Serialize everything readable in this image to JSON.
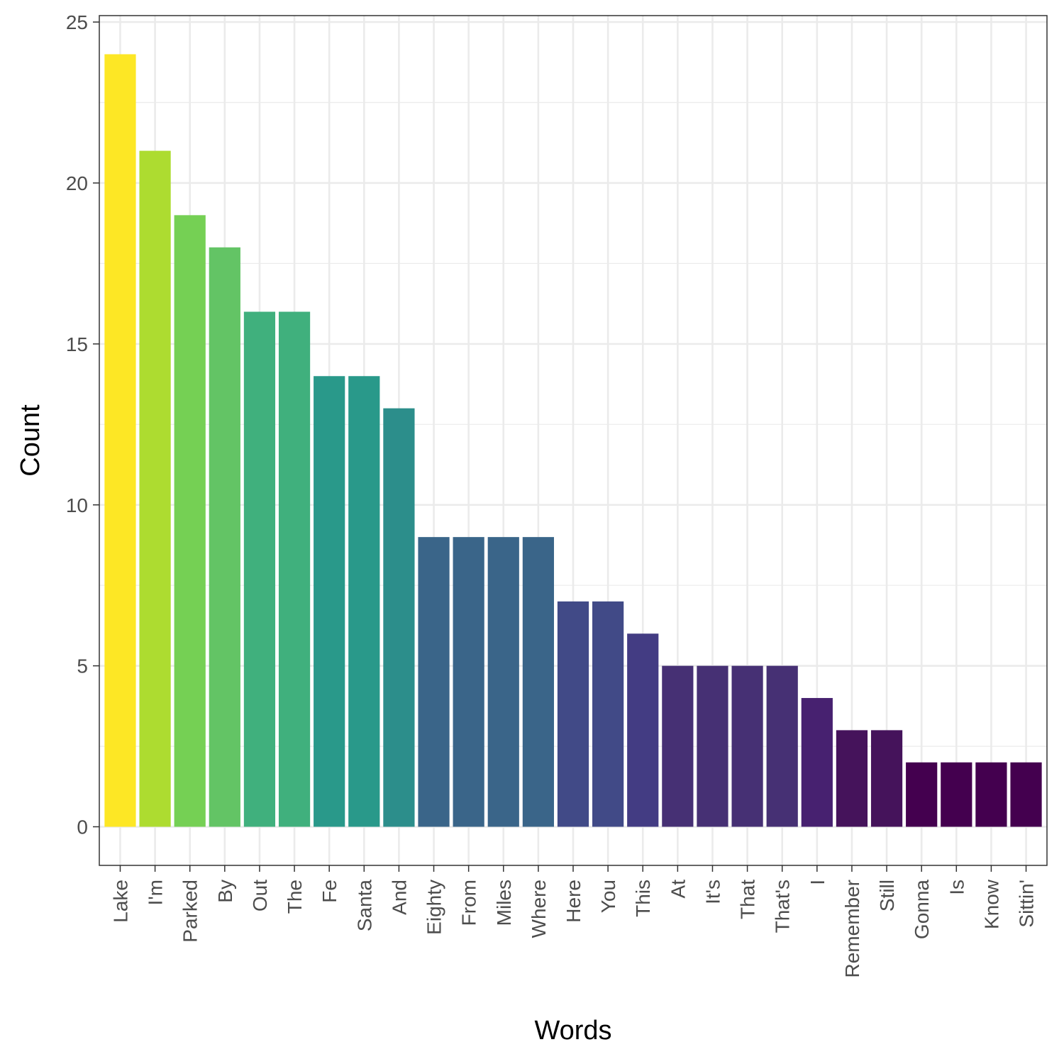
{
  "chart_data": {
    "type": "bar",
    "title": "",
    "xlabel": "Words",
    "ylabel": "Count",
    "ylim": [
      -1.2,
      25.2
    ],
    "yticks": [
      0,
      5,
      10,
      15,
      20,
      25
    ],
    "grid": true,
    "legend": "none",
    "categories": [
      "Lake",
      "I'm",
      "Parked",
      "By",
      "Out",
      "The",
      "Fe",
      "Santa",
      "And",
      "Eighty",
      "From",
      "Miles",
      "Where",
      "Here",
      "You",
      "This",
      "At",
      "It's",
      "That",
      "That's",
      "I",
      "Remember",
      "Still",
      "Gonna",
      "Is",
      "Know",
      "Sittin'"
    ],
    "values": [
      24,
      21,
      19,
      18,
      16,
      16,
      14,
      14,
      13,
      9,
      9,
      9,
      9,
      7,
      7,
      6,
      5,
      5,
      5,
      5,
      4,
      3,
      3,
      2,
      2,
      2,
      2
    ],
    "colors": [
      "#FDE725",
      "#ADDC30",
      "#75D054",
      "#63C465",
      "#40B07D",
      "#40B07D",
      "#29998A",
      "#29998A",
      "#2C8E8B",
      "#3A6589",
      "#3A6589",
      "#3A6589",
      "#3A6589",
      "#414A87",
      "#414A87",
      "#433C83",
      "#463074",
      "#463074",
      "#463074",
      "#463074",
      "#472170",
      "#45135B",
      "#45135B",
      "#44004F",
      "#44004F",
      "#44004F",
      "#44004F"
    ]
  }
}
